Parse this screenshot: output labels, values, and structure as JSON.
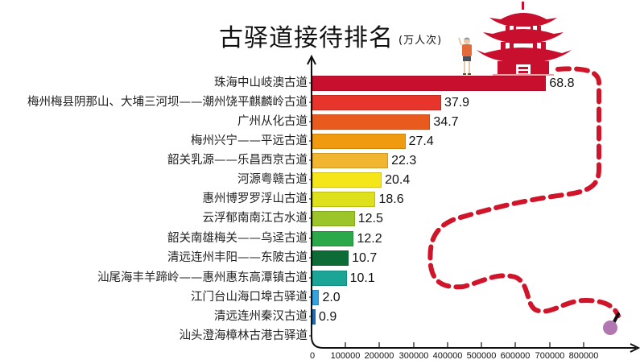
{
  "chart_data": {
    "type": "bar",
    "orientation": "horizontal",
    "title": "古驿道接待排名",
    "unit": "(万人次)",
    "xlabel": "",
    "ylabel": "",
    "xlim": [
      0,
      900000
    ],
    "x_ticks": [
      "0",
      "100000",
      "200000",
      "300000",
      "400000",
      "500000",
      "600000",
      "700000",
      "800000"
    ],
    "grid": false,
    "legend": null,
    "categories": [
      "珠海中山岐澳古道",
      "梅州梅县阴那山、大埔三河坝——潮州饶平麒麟岭古道",
      "广州从化古道",
      "梅州兴宁——平远古道",
      "韶关乳源——乐昌西京古道",
      "河源粤赣古道",
      "惠州博罗罗浮山古道",
      "云浮郁南南江古水道",
      "韶关南雄梅关——乌迳古道",
      "清远连州丰阳——东陂古道",
      "汕尾海丰羊蹄岭——惠州惠东高潭镇古道",
      "江门台山海口埠古驿道",
      "清远连州秦汉古道",
      "汕头澄海樟林古港古驿道"
    ],
    "values": [
      68.8,
      37.9,
      34.7,
      27.4,
      22.3,
      20.4,
      18.6,
      12.5,
      12.2,
      10.7,
      10.1,
      2.0,
      0.9,
      null
    ],
    "value_labels": [
      "68.8",
      "37.9",
      "34.7",
      "27.4",
      "22.3",
      "20.4",
      "18.6",
      "12.5",
      "12.2",
      "10.7",
      "10.1",
      "2.0",
      "0.9",
      ""
    ],
    "colors": [
      "#c8102e",
      "#e8352b",
      "#e85a1e",
      "#f09a10",
      "#f2b530",
      "#f5e61a",
      "#dde01a",
      "#9cc52a",
      "#2aa84a",
      "#0d6b35",
      "#1aa597",
      "#35a3e0",
      "#1f6fb8",
      "#ffffff"
    ]
  },
  "decorations": {
    "pagoda": "red-pagoda-illustration",
    "hiker": "hiker-illustration",
    "path": "red-dashed-trail",
    "endpoint": "purple-pin"
  }
}
